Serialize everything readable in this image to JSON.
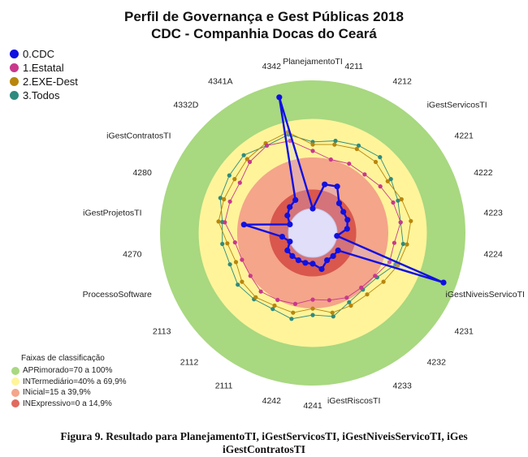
{
  "title_line1": "Perfil de Governança e Gest Públicas 2018",
  "title_line2": "CDC - Companhia Docas do Ceará",
  "caption_line1": "Figura 9. Resultado para PlanejamentoTI, iGestServicosTI, iGestNiveisServicoTI, iGes",
  "caption_line2": "iGestContratosTI",
  "legend": [
    {
      "label": "0.CDC",
      "color": "#1010e0"
    },
    {
      "label": "1.Estatal",
      "color": "#c8388c"
    },
    {
      "label": "2.EXE-Dest",
      "color": "#b8860b"
    },
    {
      "label": "3.Todos",
      "color": "#2f8a7e"
    }
  ],
  "bands_title": "Faixas de classificação",
  "bands": [
    {
      "label": "APRimorado=70 a 100%",
      "color": "#a8d880"
    },
    {
      "label": "INTermediário=40% a 69,9%",
      "color": "#fff49a"
    },
    {
      "label": "INicial=15 a 39,9%",
      "color": "#f4a58a"
    },
    {
      "label": "INExpressivo=0 a 14,9%",
      "color": "#e06a60"
    }
  ],
  "chart_data": {
    "type": "radar",
    "range": [
      0,
      100
    ],
    "bands": [
      {
        "name": "INExpressivo",
        "from": 0,
        "to": 14.9
      },
      {
        "name": "INicial",
        "from": 15,
        "to": 39.9
      },
      {
        "name": "INTermediário",
        "from": 40,
        "to": 69.9
      },
      {
        "name": "APRimorado",
        "from": 70,
        "to": 100
      }
    ],
    "categories": [
      "PlanejamentoTI",
      "4211",
      "4212",
      "iGestServicosTI",
      "4221",
      "4222",
      "4223",
      "4224",
      "iGestNiveisServicoTI",
      "4231",
      "4232",
      "4233",
      "iGestRiscosTI",
      "4241",
      "4242",
      "2111",
      "2112",
      "2113",
      "ProcessoSoftware",
      "4270",
      "iGestProjetosTI",
      "4280",
      "iGestContratosTI",
      "4332D",
      "4341A",
      "4342"
    ],
    "series": [
      {
        "name": "0.CDC",
        "color": "#1010e0",
        "values": [
          0,
          20,
          22,
          12,
          10,
          10,
          8,
          0,
          90,
          5,
          5,
          5,
          10,
          5,
          5,
          5,
          5,
          5,
          0,
          5,
          35,
          0,
          5,
          8,
          10,
          90
        ]
      },
      {
        "name": "1.Estatal",
        "color": "#c8388c",
        "values": [
          45,
          40,
          42,
          42,
          45,
          48,
          50,
          45,
          45,
          40,
          38,
          38,
          35,
          33,
          38,
          40,
          42,
          40,
          40,
          42,
          50,
          50,
          50,
          55,
          58,
          55
        ]
      },
      {
        "name": "2.EXE-Dest",
        "color": "#b8860b",
        "values": [
          50,
          52,
          55,
          55,
          52,
          55,
          58,
          55,
          52,
          48,
          45,
          45,
          45,
          40,
          45,
          45,
          48,
          48,
          45,
          48,
          55,
          55,
          55,
          58,
          60,
          62
        ]
      },
      {
        "name": "3.Todos",
        "color": "#2f8a7e",
        "values": [
          52,
          55,
          58,
          60,
          55,
          52,
          50,
          52,
          50,
          42,
          40,
          42,
          48,
          45,
          50,
          48,
          50,
          52,
          50,
          52,
          52,
          58,
          60,
          62,
          58,
          60
        ]
      }
    ]
  }
}
